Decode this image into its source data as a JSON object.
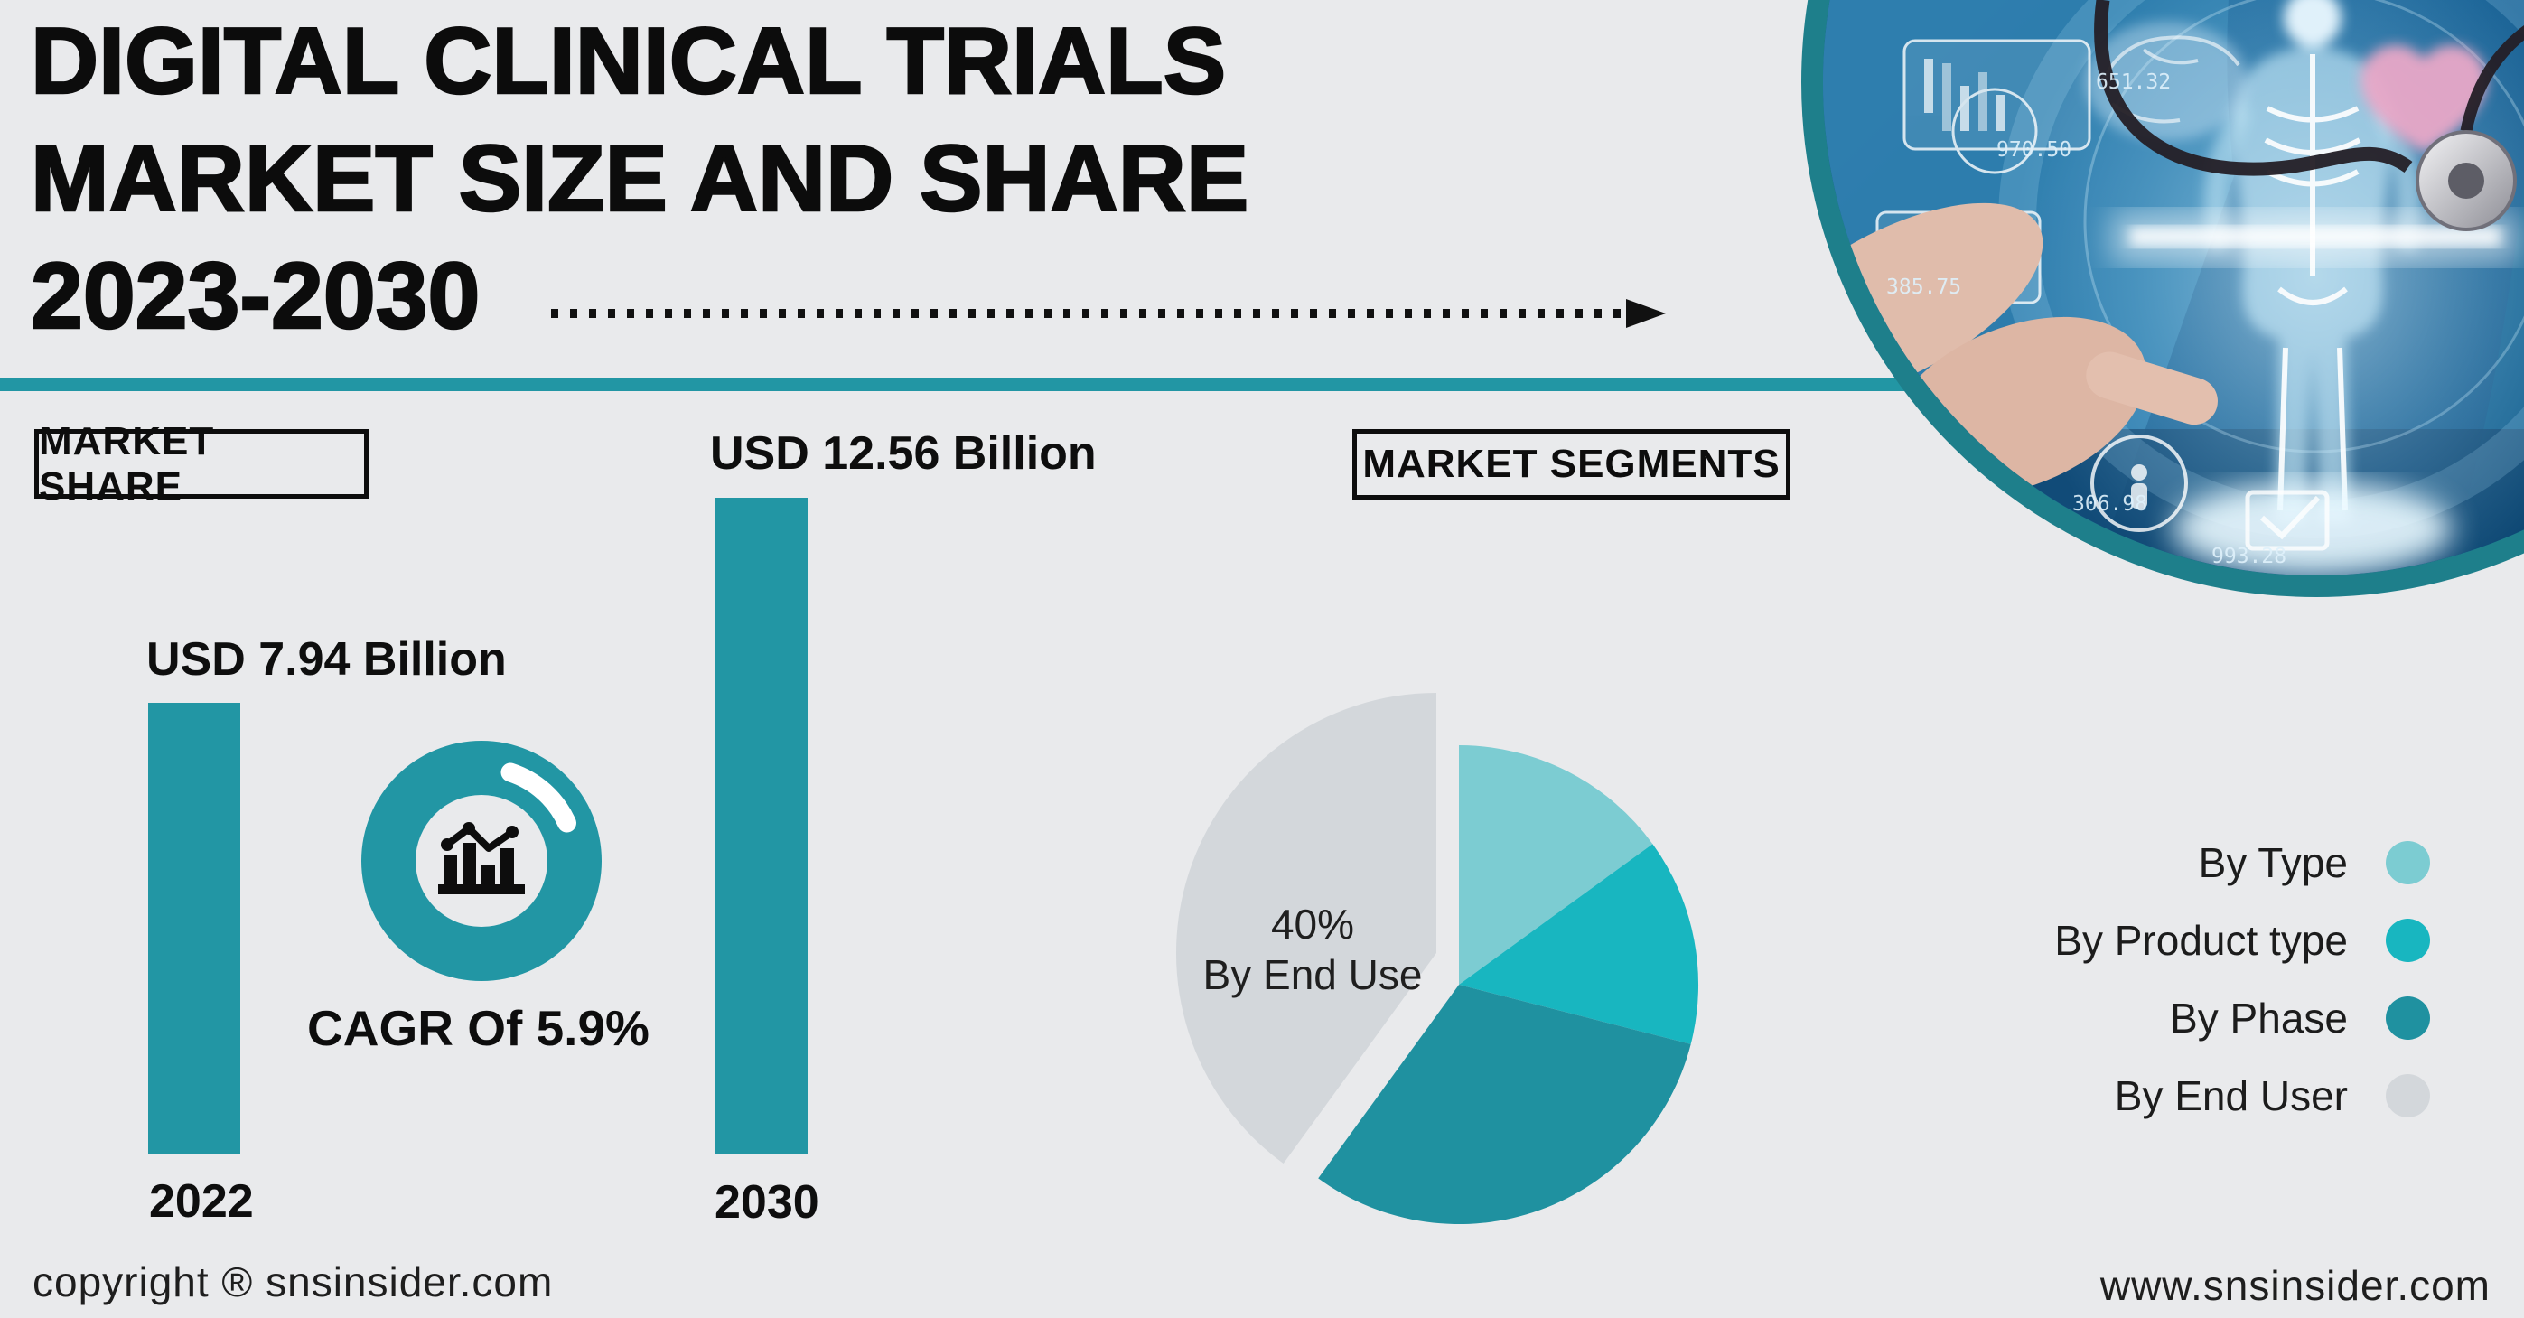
{
  "page": {
    "background": "#e9eaec",
    "accent_teal": "#2296a4",
    "hero_ring_teal": "#1e7f8b",
    "text_color": "#0c0c0c"
  },
  "title": {
    "lines": [
      "DIGITAL CLINICAL TRIALS",
      "MARKET SIZE AND SHARE",
      "2023-2030"
    ]
  },
  "badges": {
    "market_share": "MARKET SHARE",
    "market_segments": "MARKET SEGMENTS"
  },
  "bar_chart": {
    "bars": [
      {
        "year": "2022",
        "value_label": "USD 7.94 Billion"
      },
      {
        "year": "2030",
        "value_label": "USD 12.56 Billion"
      }
    ]
  },
  "cagr": {
    "label": "CAGR Of 5.9%"
  },
  "pie": {
    "center_label": {
      "line1": "40%",
      "line2": "By End Use"
    }
  },
  "legend": [
    {
      "label": "By Type",
      "color": "#7cccd2"
    },
    {
      "label": "By Product type",
      "color": "#18b6c0"
    },
    {
      "label": "By Phase",
      "color": "#1f91a0"
    },
    {
      "label": "By End User",
      "color": "#d3d7db"
    }
  ],
  "hero": {
    "photo_numbers": [
      "651.32",
      "970.50",
      "385.75",
      "306.98",
      "993.28"
    ]
  },
  "footer": {
    "left": "copyright ® snsinsider.com",
    "right": "www.snsinsider.com"
  },
  "chart_data": [
    {
      "type": "bar",
      "title": "MARKET SHARE",
      "categories": [
        "2022",
        "2030"
      ],
      "values": [
        7.94,
        12.56
      ],
      "unit": "USD Billion",
      "value_labels": [
        "USD 7.94 Billion",
        "USD 12.56 Billion"
      ],
      "annotation": "CAGR Of 5.9%",
      "bar_color": "#2296a4",
      "ylim": [
        0,
        13
      ],
      "grid": false
    },
    {
      "type": "pie",
      "title": "MARKET SEGMENTS",
      "labels": [
        "By Type",
        "By Product type",
        "By Phase",
        "By End User"
      ],
      "values_pct": [
        15,
        14,
        31,
        40
      ],
      "colors": [
        "#7cccd2",
        "#18b6c0",
        "#1f91a0",
        "#d3d7db"
      ],
      "exploded": "By End User",
      "data_label": "40% By End Use",
      "legend_position": "right",
      "start_angle_deg": 0,
      "direction": "clockwise"
    }
  ]
}
